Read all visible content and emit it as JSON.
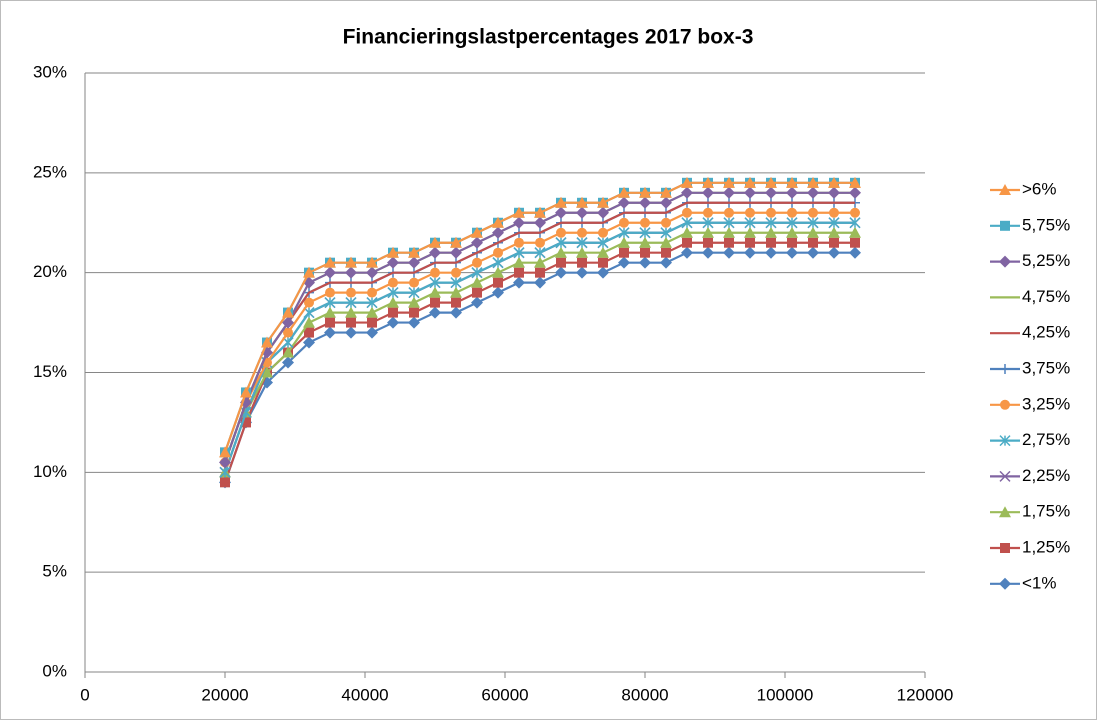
{
  "chart_data": {
    "type": "line",
    "title": "Financieringslastpercentages 2017 box-3",
    "x": [
      20000,
      23000,
      26000,
      29000,
      32000,
      35000,
      38000,
      41000,
      44000,
      47000,
      50000,
      53000,
      56000,
      59000,
      62000,
      65000,
      68000,
      71000,
      74000,
      77000,
      80000,
      83000,
      86000,
      89000,
      92000,
      95000,
      98000,
      101000,
      104000,
      107000,
      110000
    ],
    "xlim": [
      0,
      120000
    ],
    "xticks": [
      0,
      20000,
      40000,
      60000,
      80000,
      100000,
      120000
    ],
    "ylim": [
      0,
      30
    ],
    "yticks": [
      {
        "value": 0,
        "label": "0%"
      },
      {
        "value": 5,
        "label": "5%"
      },
      {
        "value": 10,
        "label": "10%"
      },
      {
        "value": 15,
        "label": "15%"
      },
      {
        "value": 20,
        "label": "20%"
      },
      {
        "value": 25,
        "label": "25%"
      },
      {
        "value": 30,
        "label": "30%"
      }
    ],
    "grid": true,
    "legend": "right",
    "series": [
      {
        "name": ">6%",
        "color": "#f79646",
        "marker": "triangle",
        "values": [
          11,
          14,
          16.5,
          18,
          20,
          20.5,
          20.5,
          20.5,
          21,
          21,
          21.5,
          21.5,
          22,
          22.5,
          23,
          23,
          23.5,
          23.5,
          23.5,
          24,
          24,
          24,
          24.5,
          24.5,
          24.5,
          24.5,
          24.5,
          24.5,
          24.5,
          24.5,
          24.5
        ]
      },
      {
        "name": "5,75%",
        "color": "#4bacc6",
        "marker": "square",
        "values": [
          11,
          14,
          16.5,
          18,
          20,
          20.5,
          20.5,
          20.5,
          21,
          21,
          21.5,
          21.5,
          22,
          22.5,
          23,
          23,
          23.5,
          23.5,
          23.5,
          24,
          24,
          24,
          24.5,
          24.5,
          24.5,
          24.5,
          24.5,
          24.5,
          24.5,
          24.5,
          24.5
        ]
      },
      {
        "name": "5,25%",
        "color": "#8064a2",
        "marker": "diamond",
        "values": [
          10.5,
          13.5,
          16,
          17.5,
          19.5,
          20,
          20,
          20,
          20.5,
          20.5,
          21,
          21,
          21.5,
          22,
          22.5,
          22.5,
          23,
          23,
          23,
          23.5,
          23.5,
          23.5,
          24,
          24,
          24,
          24,
          24,
          24,
          24,
          24,
          24
        ]
      },
      {
        "name": "4,75%",
        "color": "#9bbb59",
        "marker": "none",
        "values": [
          10.5,
          13.5,
          16,
          17.5,
          19.5,
          20,
          20,
          20,
          20.5,
          20.5,
          21,
          21,
          21.5,
          22,
          22.5,
          22.5,
          23,
          23,
          23,
          23.5,
          23.5,
          23.5,
          24,
          24,
          24,
          24,
          24,
          24,
          24,
          24,
          24
        ]
      },
      {
        "name": "4,25%",
        "color": "#c0504d",
        "marker": "none",
        "values": [
          10.5,
          13.5,
          16,
          17.5,
          19,
          19.5,
          19.5,
          19.5,
          20,
          20,
          20.5,
          20.5,
          21,
          21.5,
          22,
          22,
          22.5,
          22.5,
          22.5,
          23,
          23,
          23,
          23.5,
          23.5,
          23.5,
          23.5,
          23.5,
          23.5,
          23.5,
          23.5,
          23.5
        ]
      },
      {
        "name": "3,75%",
        "color": "#4f81bd",
        "marker": "plus",
        "values": [
          10.5,
          13.5,
          16,
          17.5,
          19,
          19.5,
          19.5,
          19.5,
          20,
          20,
          20.5,
          20.5,
          21,
          21.5,
          22,
          22,
          22.5,
          22.5,
          22.5,
          23,
          23,
          23,
          23.5,
          23.5,
          23.5,
          23.5,
          23.5,
          23.5,
          23.5,
          23.5,
          23.5
        ]
      },
      {
        "name": "3,25%",
        "color": "#f79646",
        "marker": "circle",
        "values": [
          10.5,
          13.5,
          15.5,
          17,
          18.5,
          19,
          19,
          19,
          19.5,
          19.5,
          20,
          20,
          20.5,
          21,
          21.5,
          21.5,
          22,
          22,
          22,
          22.5,
          22.5,
          22.5,
          23,
          23,
          23,
          23,
          23,
          23,
          23,
          23,
          23
        ]
      },
      {
        "name": "2,75%",
        "color": "#4bacc6",
        "marker": "star",
        "values": [
          10,
          13,
          15.5,
          16.5,
          18,
          18.5,
          18.5,
          18.5,
          19,
          19,
          19.5,
          19.5,
          20,
          20.5,
          21,
          21,
          21.5,
          21.5,
          21.5,
          22,
          22,
          22,
          22.5,
          22.5,
          22.5,
          22.5,
          22.5,
          22.5,
          22.5,
          22.5,
          22.5
        ]
      },
      {
        "name": "2,25%",
        "color": "#8064a2",
        "marker": "cross",
        "values": [
          10,
          13,
          15.5,
          16.5,
          18,
          18.5,
          18.5,
          18.5,
          19,
          19,
          19.5,
          19.5,
          20,
          20.5,
          21,
          21,
          21.5,
          21.5,
          21.5,
          22,
          22,
          22,
          22.5,
          22.5,
          22.5,
          22.5,
          22.5,
          22.5,
          22.5,
          22.5,
          22.5
        ]
      },
      {
        "name": "1,75%",
        "color": "#9bbb59",
        "marker": "triangle",
        "values": [
          10,
          13,
          15,
          16,
          17.5,
          18,
          18,
          18,
          18.5,
          18.5,
          19,
          19,
          19.5,
          20,
          20.5,
          20.5,
          21,
          21,
          21,
          21.5,
          21.5,
          21.5,
          22,
          22,
          22,
          22,
          22,
          22,
          22,
          22,
          22
        ]
      },
      {
        "name": "1,25%",
        "color": "#c0504d",
        "marker": "square",
        "values": [
          9.5,
          12.5,
          15,
          16,
          17,
          17.5,
          17.5,
          17.5,
          18,
          18,
          18.5,
          18.5,
          19,
          19.5,
          20,
          20,
          20.5,
          20.5,
          20.5,
          21,
          21,
          21,
          21.5,
          21.5,
          21.5,
          21.5,
          21.5,
          21.5,
          21.5,
          21.5,
          21.5
        ]
      },
      {
        "name": "<1%",
        "color": "#4f81bd",
        "marker": "diamond",
        "values": [
          9.5,
          12.5,
          14.5,
          15.5,
          16.5,
          17,
          17,
          17,
          17.5,
          17.5,
          18,
          18,
          18.5,
          19,
          19.5,
          19.5,
          20,
          20,
          20,
          20.5,
          20.5,
          20.5,
          21,
          21,
          21,
          21,
          21,
          21,
          21,
          21,
          21
        ]
      }
    ]
  }
}
